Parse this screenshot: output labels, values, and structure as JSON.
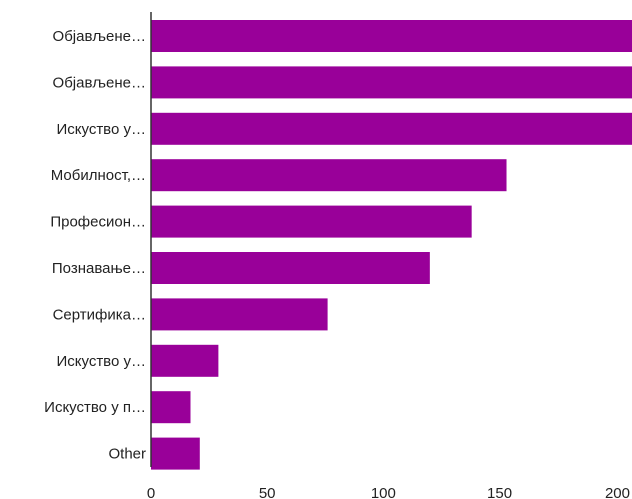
{
  "chart_data": {
    "type": "bar",
    "orientation": "horizontal",
    "categories": [
      "Објављене…",
      "Објављене…",
      "Искуство у…",
      "Мобилност,…",
      "Професион…",
      "Познавање…",
      "Сертифика…",
      "Искуство у…",
      "Искуство у п…",
      "Other"
    ],
    "values": [
      207,
      207,
      207,
      153,
      138,
      120,
      76,
      29,
      17,
      21
    ],
    "xlim": [
      0,
      207
    ],
    "xticks": [
      "0",
      "50",
      "100",
      "150",
      "200"
    ],
    "xtick_values": [
      0,
      50,
      100,
      150,
      200
    ],
    "bar_color": "#990099",
    "axis_color": "#333333",
    "grid": false,
    "legend": "none"
  }
}
